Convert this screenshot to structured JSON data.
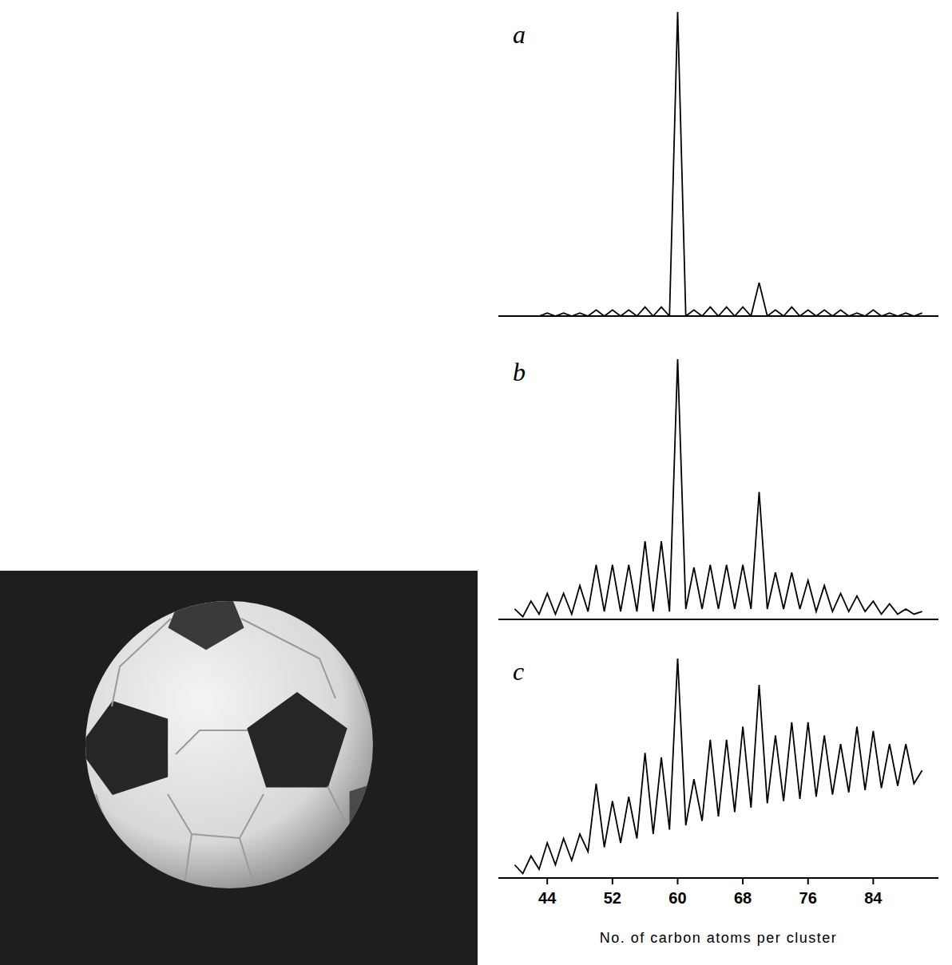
{
  "chart_data": [
    {
      "type": "line",
      "title": "a",
      "color": "#000000",
      "line_style": "solid",
      "tick_labels": false,
      "xlim": [
        38,
        92
      ],
      "ylim": [
        0,
        100
      ],
      "x": [
        40,
        41,
        42,
        43,
        44,
        45,
        46,
        47,
        48,
        49,
        50,
        51,
        52,
        53,
        54,
        55,
        56,
        57,
        58,
        59,
        60,
        61,
        62,
        63,
        64,
        65,
        66,
        67,
        68,
        69,
        70,
        71,
        72,
        73,
        74,
        75,
        76,
        77,
        78,
        79,
        80,
        81,
        82,
        83,
        84,
        85,
        86,
        87,
        88,
        89,
        90
      ],
      "values": [
        0,
        0,
        0,
        0,
        1,
        0,
        1,
        0,
        1,
        0,
        2,
        0,
        2,
        0,
        2,
        0,
        3,
        0,
        3,
        0,
        100,
        0,
        2,
        0,
        3,
        0,
        3,
        0,
        3,
        0,
        11,
        0,
        2,
        0,
        3,
        0,
        2,
        0,
        2,
        0,
        2,
        0,
        1,
        0,
        2,
        0,
        1,
        0,
        1,
        0,
        1
      ]
    },
    {
      "type": "line",
      "title": "b",
      "color": "#000000",
      "line_style": "solid",
      "tick_labels": false,
      "xlim": [
        38,
        92
      ],
      "ylim": [
        0,
        100
      ],
      "x": [
        40,
        41,
        42,
        43,
        44,
        45,
        46,
        47,
        48,
        49,
        50,
        51,
        52,
        53,
        54,
        55,
        56,
        57,
        58,
        59,
        60,
        61,
        62,
        63,
        64,
        65,
        66,
        67,
        68,
        69,
        70,
        71,
        72,
        73,
        74,
        75,
        76,
        77,
        78,
        79,
        80,
        81,
        82,
        83,
        84,
        85,
        86,
        87,
        88,
        89,
        90
      ],
      "values": [
        4,
        1,
        7,
        2,
        10,
        2,
        10,
        2,
        13,
        3,
        21,
        3,
        21,
        3,
        21,
        3,
        30,
        3,
        30,
        3,
        100,
        4,
        20,
        4,
        21,
        4,
        21,
        4,
        21,
        4,
        49,
        4,
        18,
        4,
        18,
        4,
        15,
        3,
        13,
        3,
        10,
        3,
        9,
        3,
        7,
        2,
        6,
        2,
        4,
        2,
        3
      ]
    },
    {
      "type": "line",
      "title": "c",
      "color": "#000000",
      "line_style": "solid",
      "tick_labels": "x",
      "xlim": [
        38,
        92
      ],
      "ylim": [
        0,
        100
      ],
      "xticks": [
        44,
        52,
        60,
        68,
        76,
        84
      ],
      "x_label": "No. of carbon atoms per cluster",
      "x": [
        40,
        41,
        42,
        43,
        44,
        45,
        46,
        47,
        48,
        49,
        50,
        51,
        52,
        53,
        54,
        55,
        56,
        57,
        58,
        59,
        60,
        61,
        62,
        63,
        64,
        65,
        66,
        67,
        68,
        69,
        70,
        71,
        72,
        73,
        74,
        75,
        76,
        77,
        78,
        79,
        80,
        81,
        82,
        83,
        84,
        85,
        86,
        87,
        88,
        89,
        90
      ],
      "values": [
        6,
        2,
        10,
        4,
        16,
        6,
        18,
        8,
        20,
        12,
        43,
        14,
        35,
        16,
        37,
        18,
        57,
        20,
        55,
        22,
        100,
        24,
        45,
        26,
        63,
        28,
        63,
        30,
        69,
        32,
        88,
        34,
        65,
        35,
        71,
        36,
        71,
        37,
        65,
        38,
        61,
        39,
        69,
        40,
        67,
        41,
        61,
        42,
        61,
        43,
        49
      ]
    }
  ]
}
